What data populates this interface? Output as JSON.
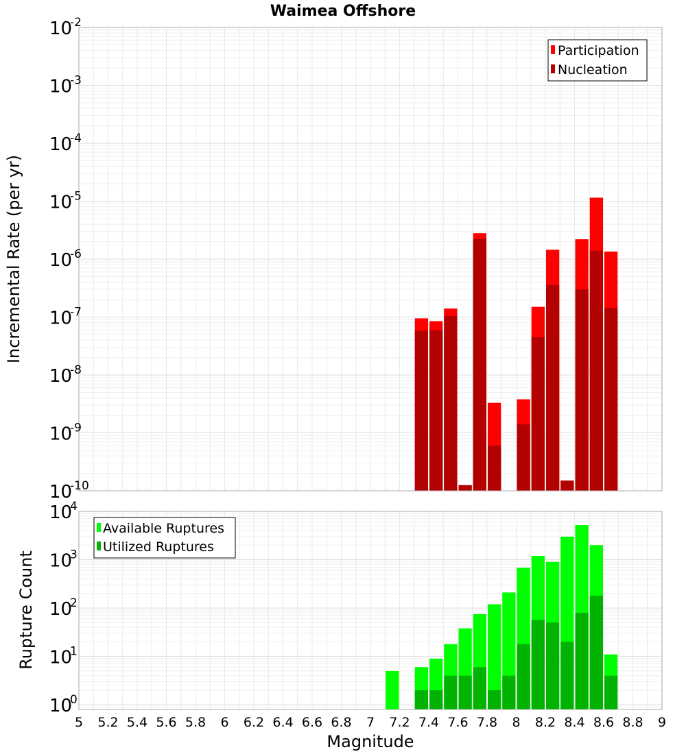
{
  "chart_data": [
    {
      "type": "bar",
      "title": "Waimea Offshore",
      "xlabel": "Magnitude",
      "ylabel": "Incremental Rate (per yr)",
      "xlim": [
        5,
        9
      ],
      "ylim": [
        1e-10,
        0.01
      ],
      "yscale": "log",
      "grid": true,
      "legend_position": "top-right",
      "y_tick_exponents": [
        -10,
        -9,
        -8,
        -7,
        -6,
        -5,
        -4,
        -3,
        -2
      ],
      "bar_width": 0.1,
      "overlay": true,
      "series": [
        {
          "name": "Participation",
          "color": "#ff0000",
          "x": [
            7.35,
            7.45,
            7.55,
            7.65,
            7.75,
            7.85,
            8.05,
            8.15,
            8.25,
            8.35,
            8.45,
            8.55,
            8.65
          ],
          "values": [
            9.5e-08,
            8.5e-08,
            1.4e-07,
            1.25e-10,
            2.8e-06,
            3.3e-09,
            3.8e-09,
            1.5e-07,
            1.45e-06,
            1.5e-10,
            2.2e-06,
            1.15e-05,
            1.35e-06
          ]
        },
        {
          "name": "Nucleation",
          "color": "#b30000",
          "x": [
            7.35,
            7.45,
            7.55,
            7.65,
            7.75,
            7.85,
            8.05,
            8.15,
            8.25,
            8.35,
            8.45,
            8.55,
            8.65
          ],
          "values": [
            5.8e-08,
            5.9e-08,
            1.05e-07,
            1.25e-10,
            2.25e-06,
            6e-10,
            1.4e-09,
            4.5e-08,
            3.6e-07,
            1.5e-10,
            3e-07,
            1.4e-06,
            1.45e-07
          ]
        }
      ]
    },
    {
      "type": "bar",
      "title": "",
      "xlabel": "Magnitude",
      "ylabel": "Rupture Count",
      "xlim": [
        5,
        9
      ],
      "ylim": [
        0.8,
        10000
      ],
      "yscale": "log",
      "grid": true,
      "legend_position": "top-left",
      "y_tick_exponents": [
        0,
        1,
        2,
        3,
        4
      ],
      "x_ticks": [
        "5",
        "5.2",
        "5.4",
        "5.6",
        "5.8",
        "6",
        "6.2",
        "6.4",
        "6.6",
        "6.8",
        "7",
        "7.2",
        "7.4",
        "7.6",
        "7.8",
        "8",
        "8.2",
        "8.4",
        "8.6",
        "8.8",
        "9"
      ],
      "bar_width": 0.1,
      "overlay": true,
      "series": [
        {
          "name": "Available Ruptures",
          "color": "#00ff00",
          "x": [
            7.15,
            7.35,
            7.45,
            7.55,
            7.65,
            7.75,
            7.85,
            7.95,
            8.05,
            8.15,
            8.25,
            8.35,
            8.45,
            8.55,
            8.65
          ],
          "values": [
            5,
            6,
            9,
            18,
            38,
            75,
            120,
            210,
            680,
            1200,
            900,
            3000,
            5200,
            2000,
            11
          ]
        },
        {
          "name": "Utilized Ruptures",
          "color": "#00b300",
          "x": [
            7.35,
            7.45,
            7.55,
            7.65,
            7.75,
            7.85,
            7.95,
            8.05,
            8.15,
            8.25,
            8.35,
            8.45,
            8.55,
            8.65
          ],
          "values": [
            2,
            2,
            4,
            4,
            6,
            2,
            4,
            18,
            57,
            50,
            20,
            80,
            180,
            4
          ]
        }
      ]
    }
  ]
}
